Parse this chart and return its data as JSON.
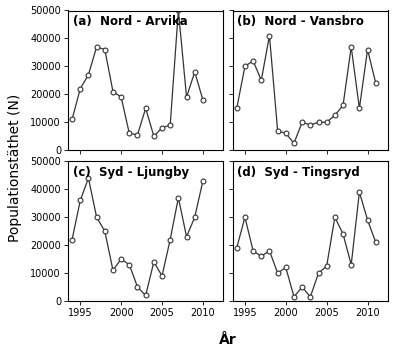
{
  "series": {
    "arvika": {
      "label": "(a)  Nord - Arvika",
      "x": [
        1994,
        1995,
        1996,
        1997,
        1998,
        1999,
        2000,
        2001,
        2002,
        2003,
        2004,
        2005,
        2006,
        2007,
        2008,
        2009,
        2010
      ],
      "y": [
        11000,
        22000,
        27000,
        37000,
        36000,
        21000,
        19000,
        6000,
        5500,
        15000,
        5000,
        8000,
        9000,
        50000,
        19000,
        28000,
        18000
      ]
    },
    "vansbro": {
      "label": "(b)  Nord - Vansbro",
      "x": [
        1994,
        1995,
        1996,
        1997,
        1998,
        1999,
        2000,
        2001,
        2002,
        2003,
        2004,
        2005,
        2006,
        2007,
        2008,
        2009,
        2010,
        2011
      ],
      "y": [
        15000,
        30000,
        32000,
        25000,
        41000,
        7000,
        6000,
        2500,
        10000,
        9000,
        10000,
        10000,
        12500,
        16000,
        37000,
        15000,
        36000,
        24000
      ]
    },
    "ljungby": {
      "label": "(c)  Syd - Ljungby",
      "x": [
        1994,
        1995,
        1996,
        1997,
        1998,
        1999,
        2000,
        2001,
        2002,
        2003,
        2004,
        2005,
        2006,
        2007,
        2008,
        2009,
        2010,
        2011
      ],
      "y": [
        22000,
        36000,
        44000,
        30000,
        25000,
        11000,
        15000,
        13000,
        5000,
        2000,
        14000,
        9000,
        22000,
        37000,
        23000,
        30000,
        43000,
        null
      ]
    },
    "tingsryd": {
      "label": "(d)  Syd - Tingsryd",
      "x": [
        1994,
        1995,
        1996,
        1997,
        1998,
        1999,
        2000,
        2001,
        2002,
        2003,
        2004,
        2005,
        2006,
        2007,
        2008,
        2009,
        2010,
        2011
      ],
      "y": [
        19000,
        30000,
        18000,
        16000,
        18000,
        10000,
        12000,
        1500,
        5000,
        1500,
        10000,
        12500,
        30000,
        24000,
        13000,
        39000,
        29000,
        21000
      ]
    }
  },
  "ylim": [
    0,
    50000
  ],
  "yticks": [
    0,
    10000,
    20000,
    30000,
    40000,
    50000
  ],
  "xticks": [
    1995,
    2000,
    2005,
    2010
  ],
  "ylabel": "Populationstäthet (N)",
  "xlabel": "År",
  "line_color": "#333333",
  "marker_size": 3.5,
  "label_fontsize": 8.5,
  "tick_fontsize": 7,
  "axis_label_fontsize": 10
}
